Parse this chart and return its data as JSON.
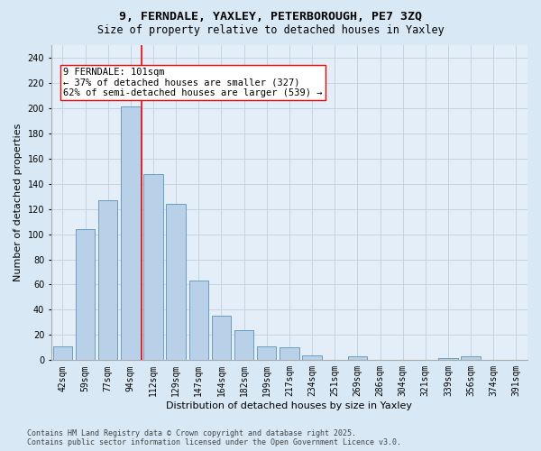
{
  "title_line1": "9, FERNDALE, YAXLEY, PETERBOROUGH, PE7 3ZQ",
  "title_line2": "Size of property relative to detached houses in Yaxley",
  "xlabel": "Distribution of detached houses by size in Yaxley",
  "ylabel": "Number of detached properties",
  "categories": [
    "42sqm",
    "59sqm",
    "77sqm",
    "94sqm",
    "112sqm",
    "129sqm",
    "147sqm",
    "164sqm",
    "182sqm",
    "199sqm",
    "217sqm",
    "234sqm",
    "251sqm",
    "269sqm",
    "286sqm",
    "304sqm",
    "321sqm",
    "339sqm",
    "356sqm",
    "374sqm",
    "391sqm"
  ],
  "values": [
    11,
    104,
    127,
    201,
    148,
    124,
    63,
    35,
    24,
    11,
    10,
    4,
    0,
    3,
    0,
    0,
    0,
    2,
    3,
    0,
    0
  ],
  "bar_color": "#b8d0e8",
  "bar_edge_color": "#6a9ec0",
  "vline_x": 3.5,
  "vline_color": "red",
  "annotation_text": "9 FERNDALE: 101sqm\n← 37% of detached houses are smaller (327)\n62% of semi-detached houses are larger (539) →",
  "annotation_box_color": "white",
  "annotation_box_edge": "red",
  "ylim": [
    0,
    250
  ],
  "grid_color": "#c0d0e0",
  "background_color": "#d8e8f4",
  "plot_background": "#e4eef8",
  "footer": "Contains HM Land Registry data © Crown copyright and database right 2025.\nContains public sector information licensed under the Open Government Licence v3.0.",
  "title_fontsize": 9.5,
  "subtitle_fontsize": 8.5,
  "axis_label_fontsize": 8,
  "tick_fontsize": 7,
  "annotation_fontsize": 7.5
}
